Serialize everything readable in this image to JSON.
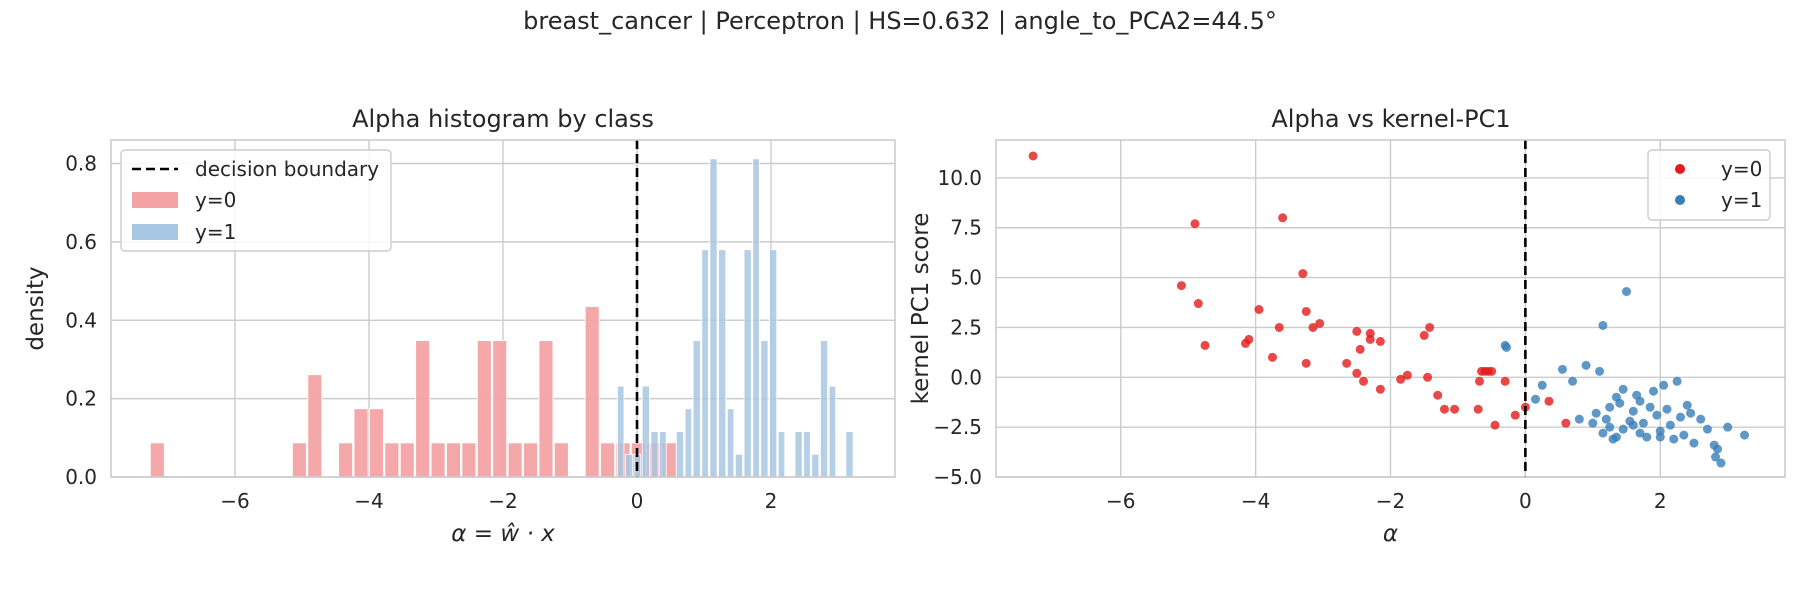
{
  "figure_title": "breast_cancer | Perceptron | HS=0.632 | angle_to_PCA2=44.5°",
  "colors": {
    "y0": "#e41a1c",
    "y1": "#377eb8",
    "y0_bar": "#f4a3a4",
    "y1_bar": "#a8c7e2",
    "boundary": "#000000",
    "grid": "#cccccc"
  },
  "chart_data": [
    {
      "type": "bar",
      "subtype": "histogram",
      "title": "Alpha histogram by class",
      "xlabel": "α = ŵ · x",
      "ylabel": "density",
      "xlim": [
        -7.85,
        3.85
      ],
      "ylim": [
        0,
        0.86
      ],
      "xticks": [
        -6,
        -4,
        -2,
        0,
        2
      ],
      "yticks": [
        0.0,
        0.2,
        0.4,
        0.6,
        0.8
      ],
      "xtick_labels": [
        "−6",
        "−4",
        "−2",
        "0",
        "2"
      ],
      "ytick_labels": [
        "0.0",
        "0.2",
        "0.4",
        "0.6",
        "0.8"
      ],
      "grid": true,
      "legend_position": "top-left",
      "legend": [
        "decision boundary",
        "y=0",
        "y=1"
      ],
      "decision_boundary_x": 0,
      "series": [
        {
          "name": "y=0",
          "bins": [
            {
              "x0": -7.27,
              "x1": -7.04,
              "density": 0.087
            },
            {
              "x0": -5.15,
              "x1": -4.92,
              "density": 0.087
            },
            {
              "x0": -4.92,
              "x1": -4.69,
              "density": 0.261
            },
            {
              "x0": -4.46,
              "x1": -4.23,
              "density": 0.087
            },
            {
              "x0": -4.23,
              "x1": -4.0,
              "density": 0.174
            },
            {
              "x0": -4.0,
              "x1": -3.77,
              "density": 0.174
            },
            {
              "x0": -3.77,
              "x1": -3.54,
              "density": 0.087
            },
            {
              "x0": -3.54,
              "x1": -3.31,
              "density": 0.087
            },
            {
              "x0": -3.31,
              "x1": -3.08,
              "density": 0.348
            },
            {
              "x0": -3.08,
              "x1": -2.85,
              "density": 0.087
            },
            {
              "x0": -2.85,
              "x1": -2.62,
              "density": 0.087
            },
            {
              "x0": -2.62,
              "x1": -2.39,
              "density": 0.087
            },
            {
              "x0": -2.39,
              "x1": -2.16,
              "density": 0.348
            },
            {
              "x0": -2.16,
              "x1": -1.93,
              "density": 0.348
            },
            {
              "x0": -1.93,
              "x1": -1.7,
              "density": 0.087
            },
            {
              "x0": -1.7,
              "x1": -1.47,
              "density": 0.087
            },
            {
              "x0": -1.47,
              "x1": -1.24,
              "density": 0.348
            },
            {
              "x0": -1.24,
              "x1": -1.01,
              "density": 0.087
            },
            {
              "x0": -0.78,
              "x1": -0.55,
              "density": 0.435
            },
            {
              "x0": -0.55,
              "x1": -0.32,
              "density": 0.087
            },
            {
              "x0": -0.32,
              "x1": -0.09,
              "density": 0.087
            },
            {
              "x0": -0.09,
              "x1": 0.14,
              "density": 0.087
            },
            {
              "x0": 0.14,
              "x1": 0.37,
              "density": 0.087
            },
            {
              "x0": 0.37,
              "x1": 0.6,
              "density": 0.087
            }
          ]
        },
        {
          "name": "y=1",
          "bins": [
            {
              "x0": -0.3,
              "x1": -0.18,
              "density": 0.232
            },
            {
              "x0": -0.18,
              "x1": -0.05,
              "density": 0.058
            },
            {
              "x0": -0.05,
              "x1": 0.07,
              "density": 0.058
            },
            {
              "x0": 0.07,
              "x1": 0.2,
              "density": 0.232
            },
            {
              "x0": 0.2,
              "x1": 0.33,
              "density": 0.116
            },
            {
              "x0": 0.33,
              "x1": 0.45,
              "density": 0.116
            },
            {
              "x0": 0.45,
              "x1": 0.58,
              "density": 0.0
            },
            {
              "x0": 0.58,
              "x1": 0.71,
              "density": 0.116
            },
            {
              "x0": 0.71,
              "x1": 0.83,
              "density": 0.174
            },
            {
              "x0": 0.83,
              "x1": 0.96,
              "density": 0.348
            },
            {
              "x0": 0.96,
              "x1": 1.08,
              "density": 0.58
            },
            {
              "x0": 1.08,
              "x1": 1.21,
              "density": 0.812
            },
            {
              "x0": 1.21,
              "x1": 1.34,
              "density": 0.58
            },
            {
              "x0": 1.34,
              "x1": 1.46,
              "density": 0.174
            },
            {
              "x0": 1.46,
              "x1": 1.59,
              "density": 0.058
            },
            {
              "x0": 1.59,
              "x1": 1.72,
              "density": 0.58
            },
            {
              "x0": 1.72,
              "x1": 1.84,
              "density": 0.812
            },
            {
              "x0": 1.84,
              "x1": 1.97,
              "density": 0.348
            },
            {
              "x0": 1.97,
              "x1": 2.1,
              "density": 0.58
            },
            {
              "x0": 2.1,
              "x1": 2.22,
              "density": 0.116
            },
            {
              "x0": 2.22,
              "x1": 2.35,
              "density": 0.0
            },
            {
              "x0": 2.35,
              "x1": 2.48,
              "density": 0.116
            },
            {
              "x0": 2.48,
              "x1": 2.6,
              "density": 0.116
            },
            {
              "x0": 2.6,
              "x1": 2.73,
              "density": 0.058
            },
            {
              "x0": 2.73,
              "x1": 2.86,
              "density": 0.348
            },
            {
              "x0": 2.86,
              "x1": 2.98,
              "density": 0.232
            },
            {
              "x0": 2.98,
              "x1": 3.11,
              "density": 0.0
            },
            {
              "x0": 3.11,
              "x1": 3.24,
              "density": 0.116
            }
          ]
        }
      ]
    },
    {
      "type": "scatter",
      "title": "Alpha vs kernel-PC1",
      "xlabel": "α",
      "ylabel": "kernel PC1 score",
      "xlim": [
        -7.85,
        3.85
      ],
      "ylim": [
        -5.0,
        11.9
      ],
      "xticks": [
        -6,
        -4,
        -2,
        0,
        2
      ],
      "yticks": [
        -5.0,
        -2.5,
        0.0,
        2.5,
        5.0,
        7.5,
        10.0
      ],
      "xtick_labels": [
        "−6",
        "−4",
        "−2",
        "0",
        "2"
      ],
      "ytick_labels": [
        "−5.0",
        "−2.5",
        "0.0",
        "2.5",
        "5.0",
        "7.5",
        "10.0"
      ],
      "grid": true,
      "legend_position": "top-right",
      "legend": [
        "y=0",
        "y=1"
      ],
      "decision_boundary_x": 0,
      "series": [
        {
          "name": "y=0",
          "points": [
            [
              -7.3,
              11.1
            ],
            [
              -4.9,
              7.7
            ],
            [
              -3.6,
              8.0
            ],
            [
              -5.1,
              4.6
            ],
            [
              -4.85,
              3.7
            ],
            [
              -4.75,
              1.6
            ],
            [
              -4.1,
              1.9
            ],
            [
              -4.15,
              1.7
            ],
            [
              -3.95,
              3.4
            ],
            [
              -3.75,
              1.0
            ],
            [
              -3.65,
              2.5
            ],
            [
              -3.3,
              5.2
            ],
            [
              -3.25,
              3.3
            ],
            [
              -3.15,
              2.5
            ],
            [
              -3.05,
              2.7
            ],
            [
              -3.25,
              0.7
            ],
            [
              -2.65,
              0.7
            ],
            [
              -2.5,
              2.3
            ],
            [
              -2.3,
              2.2
            ],
            [
              -2.3,
              1.9
            ],
            [
              -2.15,
              1.8
            ],
            [
              -2.45,
              1.4
            ],
            [
              -2.5,
              0.2
            ],
            [
              -2.4,
              -0.2
            ],
            [
              -2.15,
              -0.6
            ],
            [
              -1.85,
              -0.1
            ],
            [
              -1.75,
              0.1
            ],
            [
              -1.5,
              2.1
            ],
            [
              -1.42,
              2.5
            ],
            [
              -1.45,
              0.0
            ],
            [
              -1.3,
              -0.9
            ],
            [
              -1.2,
              -1.6
            ],
            [
              -1.05,
              -1.6
            ],
            [
              -0.7,
              -1.6
            ],
            [
              -0.68,
              -0.2
            ],
            [
              -0.65,
              0.3
            ],
            [
              -0.6,
              0.3
            ],
            [
              -0.55,
              0.3
            ],
            [
              -0.5,
              0.3
            ],
            [
              -0.45,
              -2.4
            ],
            [
              -0.3,
              -0.2
            ],
            [
              -0.15,
              -1.9
            ],
            [
              0.0,
              -1.5
            ],
            [
              0.35,
              -1.2
            ],
            [
              0.6,
              -2.3
            ]
          ]
        },
        {
          "name": "y=1",
          "points": [
            [
              -0.3,
              1.6
            ],
            [
              -0.28,
              1.5
            ],
            [
              0.25,
              -0.4
            ],
            [
              0.15,
              -1.1
            ],
            [
              0.55,
              0.4
            ],
            [
              0.7,
              -0.2
            ],
            [
              0.8,
              -2.1
            ],
            [
              0.9,
              0.6
            ],
            [
              1.0,
              -2.3
            ],
            [
              1.05,
              -1.8
            ],
            [
              1.1,
              0.3
            ],
            [
              1.15,
              -2.8
            ],
            [
              1.2,
              -2.1
            ],
            [
              1.25,
              -1.5
            ],
            [
              1.3,
              -3.1
            ],
            [
              1.35,
              -1.0
            ],
            [
              1.4,
              -1.3
            ],
            [
              1.45,
              -2.6
            ],
            [
              1.5,
              4.3
            ],
            [
              1.55,
              -2.2
            ],
            [
              1.6,
              -1.7
            ],
            [
              1.65,
              -0.9
            ],
            [
              1.7,
              -1.2
            ],
            [
              1.75,
              -2.3
            ],
            [
              1.8,
              -3.0
            ],
            [
              1.85,
              -1.5
            ],
            [
              1.9,
              -0.7
            ],
            [
              1.95,
              -1.9
            ],
            [
              2.0,
              -2.7
            ],
            [
              2.05,
              -0.4
            ],
            [
              2.1,
              -1.6
            ],
            [
              2.15,
              -2.4
            ],
            [
              2.2,
              -3.1
            ],
            [
              2.25,
              -0.2
            ],
            [
              2.3,
              -2.0
            ],
            [
              2.35,
              -2.9
            ],
            [
              2.4,
              -1.4
            ],
            [
              2.45,
              -1.8
            ],
            [
              2.5,
              -3.3
            ],
            [
              2.6,
              -2.1
            ],
            [
              2.7,
              -2.6
            ],
            [
              2.8,
              -3.4
            ],
            [
              2.82,
              -4.0
            ],
            [
              2.85,
              -3.6
            ],
            [
              2.9,
              -4.3
            ],
            [
              3.0,
              -2.5
            ],
            [
              3.25,
              -2.9
            ],
            [
              1.15,
              2.6
            ],
            [
              1.45,
              -0.6
            ],
            [
              1.25,
              -2.5
            ],
            [
              1.7,
              -2.8
            ],
            [
              2.0,
              -3.0
            ],
            [
              1.6,
              -2.4
            ],
            [
              1.35,
              -3.0
            ]
          ]
        }
      ]
    }
  ]
}
